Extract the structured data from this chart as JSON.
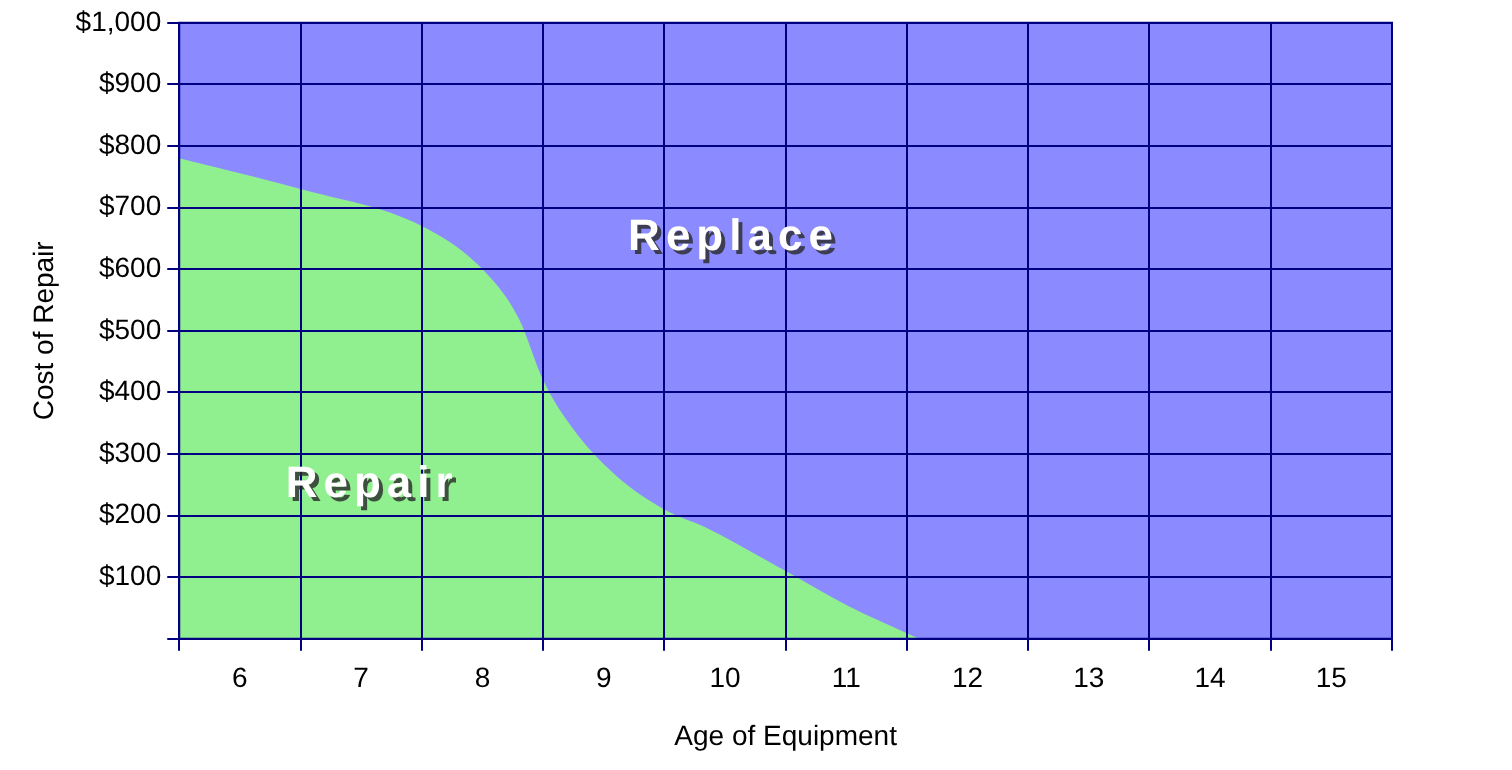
{
  "chart_data": {
    "type": "area",
    "xlabel": "Age of Equipment",
    "ylabel": "Cost of Repair",
    "xlim": [
      5.5,
      15.5
    ],
    "xticks": [
      {
        "value": 5.5,
        "label": null
      },
      6,
      {
        "value": 6.5,
        "label": null
      },
      7,
      {
        "value": 7.5,
        "label": null
      },
      8,
      {
        "value": 8.5,
        "label": null
      },
      9,
      {
        "value": 9.5,
        "label": null
      },
      10,
      {
        "value": 10.5,
        "label": null
      },
      11,
      {
        "value": 11.5,
        "label": null
      },
      12,
      {
        "value": 12.5,
        "label": null
      },
      13,
      {
        "value": 13.5,
        "label": null
      },
      14,
      {
        "value": 14.5,
        "label": null
      },
      15,
      {
        "value": 15.5,
        "label": null
      }
    ],
    "ylim": [
      0,
      1000
    ],
    "yticks": [
      {
        "value": 0,
        "label": null
      },
      {
        "value": 100,
        "label": "$100"
      },
      {
        "value": 200,
        "label": "$200"
      },
      {
        "value": 300,
        "label": "$300"
      },
      {
        "value": 400,
        "label": "$400"
      },
      {
        "value": 500,
        "label": "$500"
      },
      {
        "value": 600,
        "label": "$600"
      },
      {
        "value": 700,
        "label": "$700"
      },
      {
        "value": 800,
        "label": "$800"
      },
      {
        "value": 900,
        "label": "$900"
      },
      {
        "value": 1000,
        "label": "$1,000"
      }
    ],
    "series": [
      {
        "name": "Repair",
        "color": "#90f090",
        "x": [
          5.5,
          6.5,
          7.5,
          8,
          8.3,
          8.5,
          8.75,
          9.1,
          9.5,
          9.85,
          10.5,
          11,
          11.6
        ],
        "values": [
          780,
          730,
          670,
          600,
          520,
          420,
          340,
          265,
          210,
          180,
          110,
          55,
          0
        ]
      }
    ],
    "bands": [
      {
        "axis": "y",
        "from": 0,
        "to": 1000,
        "label": "Replace",
        "color": "#8b8bff"
      }
    ],
    "grid": true,
    "legend": false
  }
}
